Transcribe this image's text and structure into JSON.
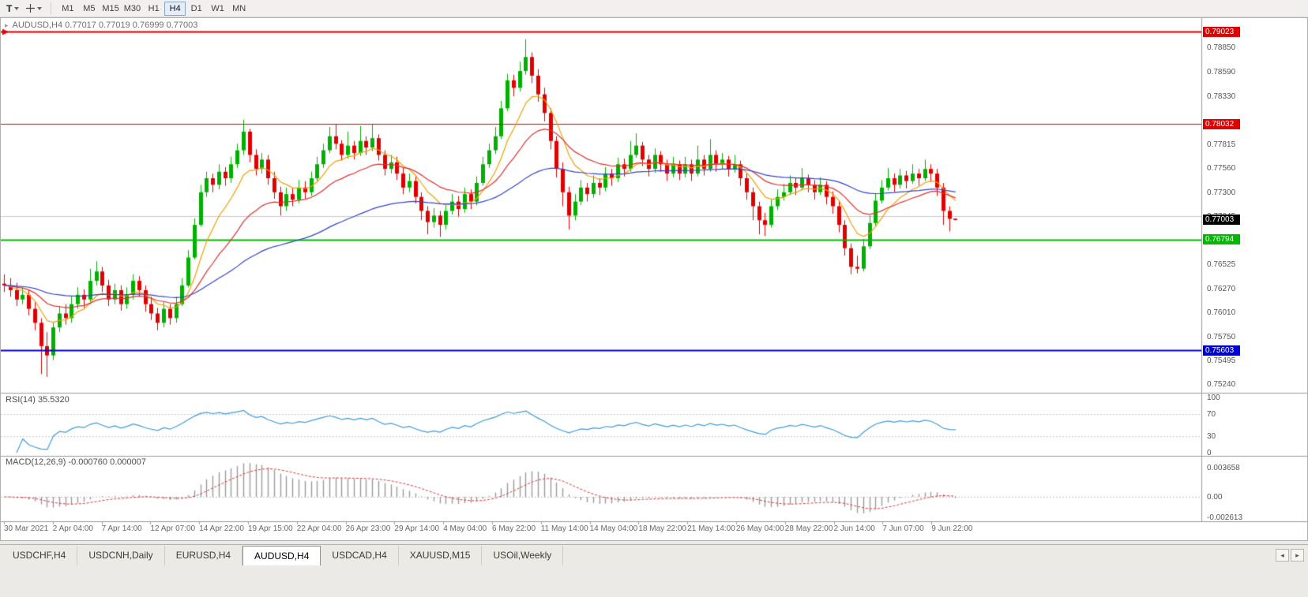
{
  "toolbar": {
    "text_tool": "T",
    "timeframes": [
      "M1",
      "M5",
      "M15",
      "M30",
      "H1",
      "H4",
      "D1",
      "W1",
      "MN"
    ],
    "active_timeframe": "H4"
  },
  "icons": {
    "chart_marker": "▸",
    "scroll_left": "◂",
    "scroll_right": "▸"
  },
  "tabs": {
    "items": [
      "USDCHF,H4",
      "USDCNH,Daily",
      "EURUSD,H4",
      "AUDUSD,H4",
      "USDCAD,H4",
      "XAUUSD,M15",
      "USOil,Weekly"
    ],
    "active": "AUDUSD,H4"
  },
  "chart_data": {
    "type": "candlestick",
    "title": "AUDUSD,H4  0.77017 0.77019 0.76999 0.77003",
    "symbol_period": "AUDUSD,H4",
    "ohlc_unit": 1e-05,
    "up_color": "#00b000",
    "down_color": "#e10000",
    "price_axis": {
      "min": 0.7515,
      "max": 0.7915,
      "tick_labels": [
        "0.78850",
        "0.78590",
        "0.78330",
        "0.77815",
        "0.77560",
        "0.77300",
        "0.77045",
        "0.76525",
        "0.76270",
        "0.76010",
        "0.75750",
        "0.75495",
        "0.75240"
      ]
    },
    "levels": [
      {
        "price": 0.79023,
        "label": "0.79023",
        "color": "#e00000",
        "width": 2,
        "marker": true
      },
      {
        "price": 0.78032,
        "label": "0.78032",
        "color": "#e00000",
        "width": 1
      },
      {
        "price": 0.77045,
        "label": null,
        "color": "#c9c9c9",
        "width": 1
      },
      {
        "price": 0.76794,
        "label": "0.76794",
        "color": "#00b800",
        "width": 2
      },
      {
        "price": 0.75603,
        "label": "0.75603",
        "color": "#0000d2",
        "width": 2
      }
    ],
    "current_price": {
      "label": "0.77003",
      "price": 0.77003,
      "color": "#000000"
    },
    "moving_averages": [
      {
        "period": 8,
        "color": "#f0a000"
      },
      {
        "period": 20,
        "color": "#e03030"
      },
      {
        "period": 55,
        "color": "#3344cc"
      }
    ],
    "candles": [
      [
        76320,
        76420,
        76230,
        76300
      ],
      [
        76300,
        76380,
        76180,
        76250
      ],
      [
        76250,
        76330,
        76080,
        76150
      ],
      [
        76150,
        76280,
        76100,
        76200
      ],
      [
        76200,
        76250,
        75980,
        76050
      ],
      [
        76050,
        76120,
        75820,
        75900
      ],
      [
        75900,
        75950,
        75350,
        75650
      ],
      [
        75650,
        75800,
        75320,
        75550
      ],
      [
        75550,
        75900,
        75500,
        75850
      ],
      [
        75850,
        76080,
        75800,
        76000
      ],
      [
        76000,
        76100,
        75880,
        75950
      ],
      [
        75950,
        76180,
        75900,
        76100
      ],
      [
        76100,
        76280,
        76050,
        76200
      ],
      [
        76200,
        76260,
        76060,
        76150
      ],
      [
        76150,
        76480,
        76100,
        76350
      ],
      [
        76350,
        76560,
        76300,
        76450
      ],
      [
        76450,
        76500,
        76230,
        76300
      ],
      [
        76300,
        76360,
        76080,
        76150
      ],
      [
        76150,
        76320,
        76100,
        76250
      ],
      [
        76250,
        76300,
        76030,
        76100
      ],
      [
        76100,
        76280,
        76050,
        76200
      ],
      [
        76200,
        76420,
        76150,
        76350
      ],
      [
        76350,
        76400,
        76180,
        76250
      ],
      [
        76250,
        76300,
        76020,
        76100
      ],
      [
        76100,
        76180,
        75930,
        76000
      ],
      [
        76000,
        76060,
        75820,
        75900
      ],
      [
        75900,
        76120,
        75850,
        76050
      ],
      [
        76050,
        76100,
        75880,
        75950
      ],
      [
        75950,
        76180,
        75900,
        76100
      ],
      [
        76100,
        76380,
        76080,
        76300
      ],
      [
        76300,
        76680,
        76280,
        76600
      ],
      [
        76600,
        77020,
        76580,
        76950
      ],
      [
        76950,
        77380,
        76930,
        77300
      ],
      [
        77300,
        77520,
        77250,
        77450
      ],
      [
        77450,
        77500,
        77300,
        77380
      ],
      [
        77380,
        77600,
        77330,
        77520
      ],
      [
        77520,
        77570,
        77370,
        77450
      ],
      [
        77450,
        77680,
        77400,
        77600
      ],
      [
        77600,
        77820,
        77560,
        77750
      ],
      [
        77750,
        78080,
        77700,
        77950
      ],
      [
        77950,
        77980,
        77620,
        77700
      ],
      [
        77700,
        77760,
        77480,
        77550
      ],
      [
        77550,
        77720,
        77500,
        77650
      ],
      [
        77650,
        77700,
        77380,
        77450
      ],
      [
        77450,
        77520,
        77230,
        77300
      ],
      [
        77300,
        77360,
        77050,
        77150
      ],
      [
        77150,
        77350,
        77100,
        77280
      ],
      [
        77280,
        77340,
        77150,
        77220
      ],
      [
        77220,
        77430,
        77180,
        77350
      ],
      [
        77350,
        77420,
        77230,
        77300
      ],
      [
        77300,
        77520,
        77260,
        77450
      ],
      [
        77450,
        77680,
        77420,
        77600
      ],
      [
        77600,
        77820,
        77560,
        77750
      ],
      [
        77750,
        78000,
        77720,
        77900
      ],
      [
        77900,
        78030,
        77760,
        77820
      ],
      [
        77820,
        77860,
        77640,
        77700
      ],
      [
        77700,
        77950,
        77660,
        77800
      ],
      [
        77800,
        77850,
        77650,
        77720
      ],
      [
        77720,
        78010,
        77690,
        77850
      ],
      [
        77850,
        77900,
        77700,
        77780
      ],
      [
        77780,
        78030,
        77740,
        77880
      ],
      [
        77880,
        77920,
        77640,
        77700
      ],
      [
        77700,
        77750,
        77480,
        77550
      ],
      [
        77550,
        77700,
        77500,
        77620
      ],
      [
        77620,
        77680,
        77430,
        77500
      ],
      [
        77500,
        77560,
        77280,
        77350
      ],
      [
        77350,
        77500,
        77300,
        77420
      ],
      [
        77420,
        77470,
        77180,
        77250
      ],
      [
        77250,
        77300,
        77000,
        77100
      ],
      [
        77100,
        77150,
        76850,
        76980
      ],
      [
        76980,
        77130,
        76920,
        77050
      ],
      [
        77050,
        77100,
        76820,
        76950
      ],
      [
        76950,
        77160,
        76900,
        77100
      ],
      [
        77100,
        77280,
        77060,
        77200
      ],
      [
        77200,
        77260,
        77040,
        77120
      ],
      [
        77120,
        77350,
        77080,
        77280
      ],
      [
        77280,
        77330,
        77120,
        77200
      ],
      [
        77200,
        77470,
        77160,
        77400
      ],
      [
        77400,
        77680,
        77370,
        77600
      ],
      [
        77600,
        77820,
        77560,
        77750
      ],
      [
        77750,
        78000,
        77710,
        77900
      ],
      [
        77900,
        78280,
        77870,
        78200
      ],
      [
        78200,
        78570,
        78170,
        78500
      ],
      [
        78500,
        78560,
        78330,
        78420
      ],
      [
        78420,
        78700,
        78380,
        78600
      ],
      [
        78600,
        78940,
        78560,
        78750
      ],
      [
        78750,
        78800,
        78470,
        78550
      ],
      [
        78550,
        78620,
        78270,
        78350
      ],
      [
        78350,
        78420,
        78060,
        78150
      ],
      [
        78150,
        78200,
        77760,
        77850
      ],
      [
        77850,
        77900,
        77460,
        77550
      ],
      [
        77550,
        77620,
        77150,
        77300
      ],
      [
        77300,
        77360,
        76900,
        77050
      ],
      [
        77050,
        77280,
        77000,
        77200
      ],
      [
        77200,
        77430,
        77160,
        77350
      ],
      [
        77350,
        77400,
        77200,
        77280
      ],
      [
        77280,
        77480,
        77240,
        77400
      ],
      [
        77400,
        77450,
        77270,
        77350
      ],
      [
        77350,
        77570,
        77310,
        77500
      ],
      [
        77500,
        77550,
        77370,
        77450
      ],
      [
        77450,
        77670,
        77410,
        77600
      ],
      [
        77600,
        77660,
        77470,
        77550
      ],
      [
        77550,
        77850,
        77520,
        77700
      ],
      [
        77700,
        77930,
        77670,
        77800
      ],
      [
        77800,
        77840,
        77580,
        77650
      ],
      [
        77650,
        77700,
        77470,
        77550
      ],
      [
        77550,
        77770,
        77510,
        77700
      ],
      [
        77700,
        77740,
        77520,
        77600
      ],
      [
        77600,
        77650,
        77420,
        77500
      ],
      [
        77500,
        77680,
        77460,
        77600
      ],
      [
        77600,
        77640,
        77430,
        77500
      ],
      [
        77500,
        77680,
        77460,
        77600
      ],
      [
        77600,
        77650,
        77420,
        77500
      ],
      [
        77500,
        77800,
        77470,
        77650
      ],
      [
        77650,
        77700,
        77480,
        77550
      ],
      [
        77550,
        77870,
        77520,
        77700
      ],
      [
        77700,
        77750,
        77520,
        77600
      ],
      [
        77600,
        77720,
        77550,
        77650
      ],
      [
        77650,
        77690,
        77470,
        77550
      ],
      [
        77550,
        77700,
        77510,
        77600
      ],
      [
        77600,
        77640,
        77370,
        77450
      ],
      [
        77450,
        77500,
        77220,
        77300
      ],
      [
        77300,
        77350,
        77000,
        77150
      ],
      [
        77150,
        77200,
        76850,
        77000
      ],
      [
        77000,
        77080,
        76830,
        76950
      ],
      [
        76950,
        77220,
        76920,
        77150
      ],
      [
        77150,
        77330,
        77110,
        77250
      ],
      [
        77250,
        77390,
        77210,
        77300
      ],
      [
        77300,
        77480,
        77270,
        77400
      ],
      [
        77400,
        77450,
        77270,
        77350
      ],
      [
        77350,
        77560,
        77320,
        77450
      ],
      [
        77450,
        77490,
        77300,
        77380
      ],
      [
        77380,
        77430,
        77220,
        77300
      ],
      [
        77300,
        77460,
        77270,
        77380
      ],
      [
        77380,
        77420,
        77170,
        77250
      ],
      [
        77250,
        77310,
        77070,
        77150
      ],
      [
        77150,
        77200,
        76870,
        76950
      ],
      [
        76950,
        77000,
        76620,
        76700
      ],
      [
        76700,
        76750,
        76420,
        76500
      ],
      [
        76500,
        76620,
        76430,
        76480
      ],
      [
        76480,
        76800,
        76450,
        76720
      ],
      [
        76720,
        77050,
        76690,
        76970
      ],
      [
        76970,
        77290,
        76940,
        77210
      ],
      [
        77210,
        77430,
        77180,
        77350
      ],
      [
        77350,
        77560,
        77320,
        77450
      ],
      [
        77450,
        77500,
        77300,
        77380
      ],
      [
        77380,
        77550,
        77340,
        77480
      ],
      [
        77480,
        77530,
        77340,
        77420
      ],
      [
        77420,
        77600,
        77390,
        77500
      ],
      [
        77500,
        77550,
        77370,
        77450
      ],
      [
        77450,
        77650,
        77420,
        77550
      ],
      [
        77550,
        77600,
        77410,
        77500
      ],
      [
        77500,
        77550,
        77260,
        77350
      ],
      [
        77350,
        77400,
        76950,
        77100
      ],
      [
        77100,
        77150,
        76880,
        77015
      ],
      [
        77017,
        77019,
        76999,
        77003
      ]
    ],
    "rsi": {
      "label": "RSI(14) 35.5320",
      "period": 14,
      "value": 35.532,
      "ticks": [
        "100",
        "70",
        "30",
        "0"
      ],
      "levels": [
        70,
        30
      ],
      "color": "#3e9adf"
    },
    "macd": {
      "label": "MACD(12,26,9) -0.000760 0.000007",
      "fast": 12,
      "slow": 26,
      "signal": 9,
      "values": [
        -0.00076,
        7e-06
      ],
      "ticks": [
        "0.003658",
        "0.00",
        "-0.002613"
      ],
      "max": 0.0048,
      "min": -0.0028,
      "hist_color": "#9a9a9a",
      "signal_color": "#dd3333"
    },
    "time_labels": [
      "30 Mar 2021",
      "2 Apr 04:00",
      "7 Apr 14:00",
      "12 Apr 07:00",
      "14 Apr 22:00",
      "19 Apr 15:00",
      "22 Apr 04:00",
      "26 Apr 23:00",
      "29 Apr 14:00",
      "4 May 04:00",
      "6 May 22:00",
      "11 May 14:00",
      "14 May 04:00",
      "18 May 22:00",
      "21 May 14:00",
      "26 May 04:00",
      "28 May 22:00",
      "2 Jun 14:00",
      "7 Jun 07:00",
      "9 Jun 22:00"
    ]
  }
}
